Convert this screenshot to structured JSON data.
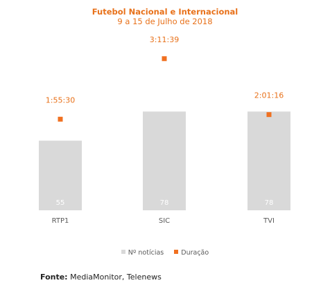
{
  "chart_data": {
    "type": "bar",
    "title": "Futebol Nacional e Internacional",
    "subtitle": "9 a 15 de Julho de 2018",
    "categories": [
      "RTP1",
      "SIC",
      "TVI"
    ],
    "series": [
      {
        "name": "Nº notícias",
        "kind": "bar",
        "values": [
          55,
          78,
          78
        ],
        "color": "#d9d9d9"
      },
      {
        "name": "Duração",
        "kind": "marker",
        "values": [
          "1:55:30",
          "3:11:39",
          "2:01:16"
        ],
        "seconds": [
          6930,
          11499,
          7276
        ],
        "color": "#f07020"
      }
    ],
    "ylim": [
      0,
      85
    ],
    "grid": false,
    "legend": "bottom"
  },
  "source": {
    "label": "Fonte:",
    "text": " MediaMonitor, Telenews"
  },
  "colors": {
    "accent": "#e8711a",
    "bar": "#d9d9d9",
    "marker": "#f07020",
    "text": "#595959"
  }
}
